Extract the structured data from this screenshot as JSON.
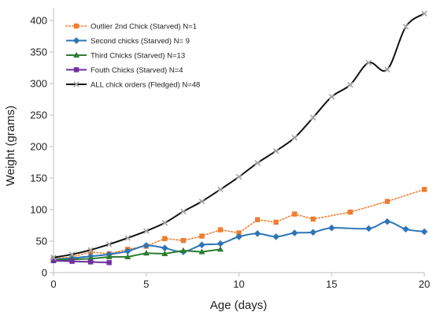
{
  "chart_data": {
    "type": "line",
    "xlabel": "Age (days)",
    "ylabel": "Weight (grams)",
    "xlim": [
      0,
      20
    ],
    "ylim": [
      0,
      420
    ],
    "xticks": [
      0,
      5,
      10,
      15,
      20
    ],
    "yticks": [
      0,
      50,
      100,
      150,
      200,
      250,
      300,
      350,
      400
    ],
    "grid": false,
    "legend_position": "top-left",
    "series": [
      {
        "name": "Outlier 2nd Chick (Starved) N=1",
        "color": "#ed7d31",
        "line_style": "dotted",
        "marker": "square",
        "smooth": false,
        "x": [
          0,
          1,
          2,
          3,
          4,
          5,
          6,
          7,
          8,
          9,
          10,
          11,
          12,
          13,
          14,
          16,
          18,
          20
        ],
        "y": [
          22,
          25,
          33,
          30,
          37,
          42,
          54,
          51,
          58,
          68,
          63,
          84,
          80,
          93,
          85,
          96,
          113,
          132
        ]
      },
      {
        "name": "Second chicks (Starved) N= 9",
        "color": "#2e75b6",
        "line_style": "solid",
        "marker": "diamond",
        "smooth": true,
        "x": [
          0,
          1,
          2,
          3,
          4,
          5,
          6,
          7,
          8,
          9,
          10,
          11,
          12,
          13,
          14,
          15,
          17,
          18,
          19,
          20
        ],
        "y": [
          21,
          23,
          26,
          29,
          34,
          43,
          39,
          33,
          44,
          46,
          57,
          62,
          57,
          63,
          64,
          71,
          70,
          81,
          69,
          65
        ]
      },
      {
        "name": "Third Chicks (Starved) N=13",
        "color": "#2e7d32",
        "line_style": "solid",
        "marker": "triangle",
        "smooth": false,
        "x": [
          0,
          1,
          2,
          3,
          4,
          5,
          6,
          7,
          8,
          9
        ],
        "y": [
          20,
          21,
          22,
          25,
          25,
          31,
          30,
          35,
          33,
          37
        ]
      },
      {
        "name": "Fouth Chicks (Starved) N=4",
        "color": "#7030a0",
        "line_style": "solid",
        "marker": "square",
        "smooth": false,
        "x": [
          0,
          1,
          2,
          3
        ],
        "y": [
          19,
          18,
          17,
          16
        ]
      },
      {
        "name": "ALL chick orders (Fledged) N=48",
        "color": "#111111",
        "marker_color": "#a6a6a6",
        "line_style": "solid",
        "marker": "x",
        "smooth": true,
        "x": [
          0,
          1,
          2,
          3,
          4,
          5,
          6,
          7,
          8,
          9,
          10,
          11,
          12,
          13,
          14,
          15,
          16,
          17,
          18,
          19,
          20
        ],
        "y": [
          24,
          29,
          36,
          45,
          55,
          66,
          79,
          97,
          113,
          132,
          152,
          174,
          193,
          214,
          246,
          279,
          298,
          333,
          322,
          390,
          411
        ]
      }
    ]
  }
}
